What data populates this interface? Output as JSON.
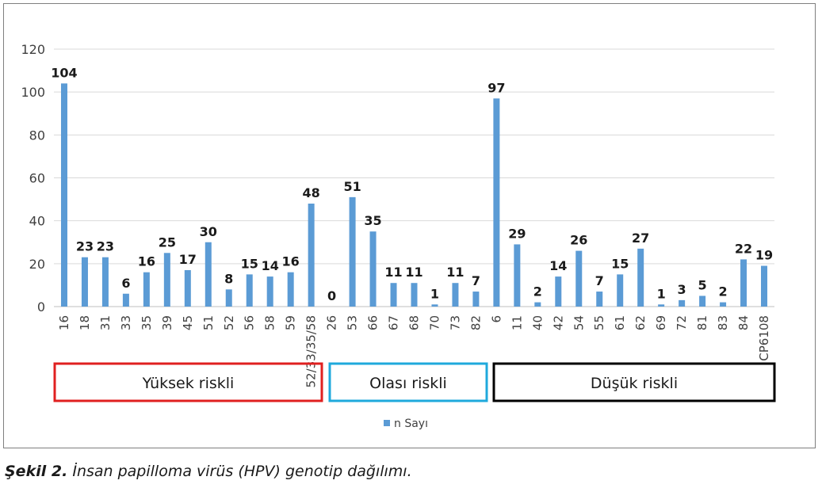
{
  "chart_data": {
    "type": "bar",
    "categories": [
      "16",
      "18",
      "31",
      "33",
      "35",
      "39",
      "45",
      "51",
      "52",
      "56",
      "58",
      "59",
      "52/33/35/58",
      "26",
      "53",
      "66",
      "67",
      "68",
      "70",
      "73",
      "82",
      "6",
      "11",
      "40",
      "42",
      "54",
      "55",
      "61",
      "62",
      "69",
      "72",
      "81",
      "83",
      "84",
      "CP6108"
    ],
    "series": [
      {
        "name": "n Sayı",
        "values": [
          104,
          23,
          23,
          6,
          16,
          25,
          17,
          30,
          8,
          15,
          14,
          16,
          48,
          0,
          51,
          35,
          11,
          11,
          1,
          11,
          7,
          97,
          29,
          2,
          14,
          26,
          7,
          15,
          27,
          1,
          3,
          5,
          2,
          22,
          19
        ]
      }
    ],
    "ylim": [
      0,
      120
    ],
    "yticks": [
      0,
      20,
      40,
      60,
      80,
      100,
      120
    ],
    "grid": true,
    "legend": "bottom",
    "bar_color": "#5b9bd5",
    "groups": [
      {
        "label": "Yüksek riskli",
        "start": 0,
        "end": 12,
        "color": "#e02020"
      },
      {
        "label": "Olası riskli",
        "start": 13,
        "end": 20,
        "color": "#1fa9dc"
      },
      {
        "label": "Düşük riskli",
        "start": 21,
        "end": 34,
        "color": "#000000"
      }
    ]
  },
  "caption": {
    "prefix": "Şekil 2.",
    "text": " İnsan papilloma virüs (HPV) genotip dağılımı."
  }
}
